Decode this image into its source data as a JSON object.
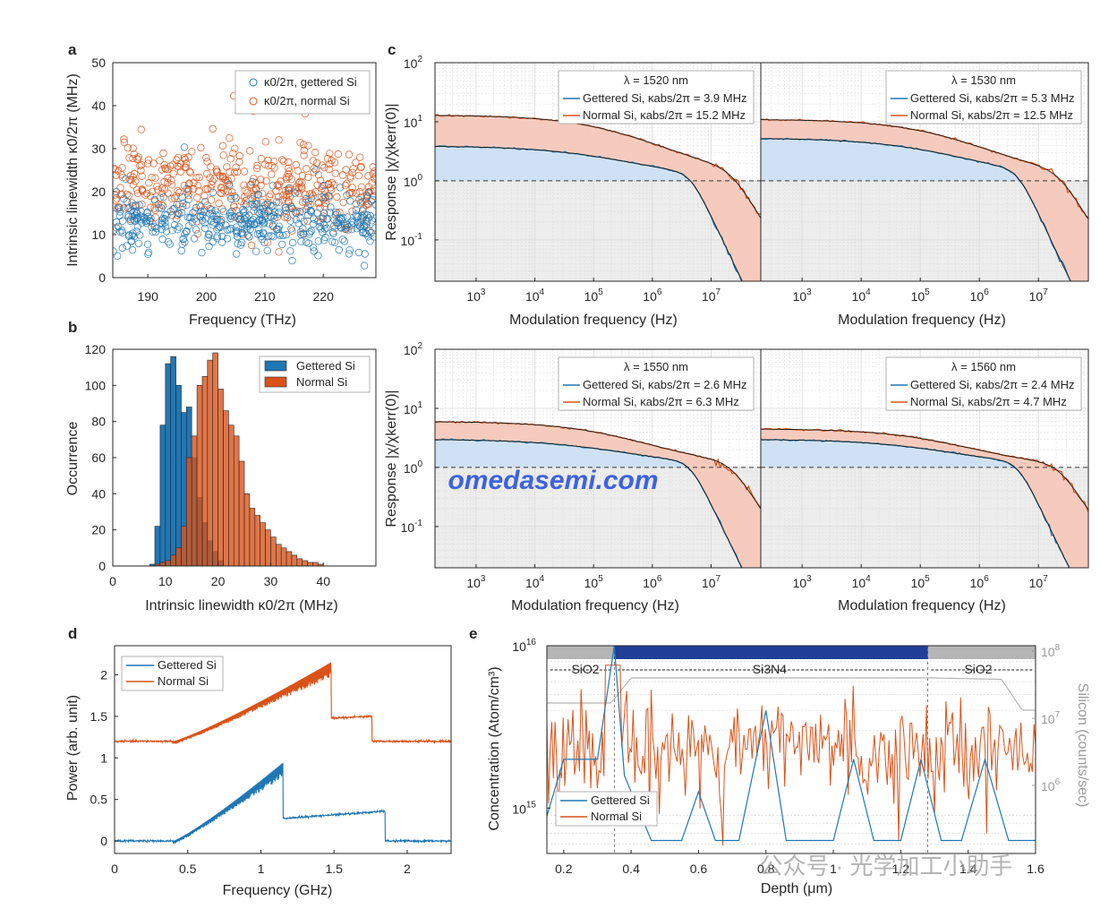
{
  "watermark": "omedasemi.com",
  "footer_watermark": "公众号 · 光学加工小助手",
  "colors": {
    "gettered": "#1f77b4",
    "normal": "#d95319",
    "fill_gettered": "#cfe2f5",
    "fill_normal": "#f6cbbd",
    "fill_gray": "#ededed",
    "sims_blue": "#1f3f99",
    "sims_gray": "#b5b5b5"
  },
  "chart_data": [
    {
      "panel": "a",
      "type": "scatter",
      "xlabel": "Frequency (THz)",
      "ylabel": "Intrinsic linewidth κ0/2π (MHz)",
      "xlim": [
        184,
        229
      ],
      "ylim": [
        0,
        50
      ],
      "xticks": [
        190,
        200,
        210,
        220
      ],
      "yticks": [
        0,
        10,
        20,
        30,
        40,
        50
      ],
      "legend_loc": "top-right",
      "series": [
        {
          "name": "κ0/2π, gettered Si",
          "center": 12.5,
          "spread": 3.5,
          "n": 420
        },
        {
          "name": "κ0/2π, normal Si",
          "center": 21,
          "spread": 4.5,
          "n": 420
        }
      ]
    },
    {
      "panel": "b",
      "type": "bar",
      "xlabel": "Intrinsic linewidth κ0/2π (MHz)",
      "ylabel": "Occurrence",
      "xlim": [
        0,
        50
      ],
      "ylim": [
        0,
        120
      ],
      "xticks": [
        0,
        10,
        20,
        30,
        40
      ],
      "yticks": [
        0,
        20,
        40,
        60,
        80,
        100,
        120
      ],
      "bin_width": 1,
      "legend_loc": "top-right",
      "series": [
        {
          "name": "Gettered Si",
          "bin_start": 7,
          "values": [
            1,
            22,
            78,
            112,
            116,
            100,
            85,
            88,
            60,
            38,
            24,
            14,
            8,
            3
          ]
        },
        {
          "name": "Normal Si",
          "bin_start": 8,
          "values": [
            1,
            2,
            3,
            6,
            10,
            22,
            60,
            72,
            100,
            105,
            114,
            118,
            98,
            86,
            78,
            72,
            58,
            40,
            32,
            28,
            24,
            20,
            16,
            12,
            10,
            8,
            6,
            4,
            3,
            2,
            2,
            1
          ]
        }
      ]
    },
    {
      "panel": "c",
      "type": "line",
      "xlabel": "Modulation frequency (Hz)",
      "ylabel": "Response |χ/χkerr(0)|",
      "x_scale": "log",
      "y_scale": "log",
      "xlim": [
        200,
        70000000
      ],
      "ylim": [
        0.02,
        100
      ],
      "yticks_labeled": [
        "10^-1",
        "10^0",
        "10^1",
        "10^2"
      ],
      "xticks_labeled": [
        "10^3",
        "10^4",
        "10^5",
        "10^6",
        "10^7"
      ],
      "reference_line": 1,
      "subplots": [
        {
          "wavelength_label": "λ = 1520 nm",
          "gettered_label": "Gettered Si, κabs/2π = 3.9 MHz",
          "normal_label": "Normal Si, κabs/2π = 15.2 MHz",
          "g_plateau": 3.9,
          "n_plateau": 13
        },
        {
          "wavelength_label": "λ = 1530 nm",
          "gettered_label": "Gettered Si, κabs/2π = 5.3 MHz",
          "normal_label": "Normal Si, κabs/2π = 12.5 MHz",
          "g_plateau": 5.3,
          "n_plateau": 11
        },
        {
          "wavelength_label": "λ = 1550 nm",
          "gettered_label": "Gettered Si, κabs/2π = 2.6 MHz",
          "normal_label": "Normal Si, κabs/2π = 6.3 MHz",
          "g_plateau": 3.0,
          "n_plateau": 6
        },
        {
          "wavelength_label": "λ = 1560 nm",
          "gettered_label": "Gettered Si, κabs/2π = 2.4 MHz",
          "normal_label": "Normal Si, κabs/2π = 4.7 MHz",
          "g_plateau": 3.0,
          "n_plateau": 4.5
        }
      ]
    },
    {
      "panel": "d",
      "type": "line",
      "xlabel": "Frequency (GHz)",
      "ylabel": "Power (arb. unit)",
      "xlim": [
        0,
        2.3
      ],
      "ylim": [
        -0.15,
        2.35
      ],
      "xticks": [
        0,
        0.5,
        1,
        1.5,
        2
      ],
      "yticks": [
        0,
        0.5,
        1,
        1.5,
        2
      ],
      "legend_loc": "top-left",
      "series": [
        {
          "name": "Gettered Si",
          "baseline": 0,
          "ramp_start": 0.4,
          "peak_x": 1.15,
          "peak_y": 0.97,
          "tail_level": 0.27,
          "tail_end_y": 0.36,
          "tail_end_x": 1.85
        },
        {
          "name": "Normal Si",
          "baseline": 1.2,
          "ramp_start": 0.4,
          "peak_x": 1.48,
          "peak_y": 2.18,
          "tail_level": 1.48,
          "tail_end_y": 1.5,
          "tail_end_x": 1.76
        }
      ]
    },
    {
      "panel": "e",
      "type": "line",
      "xlabel": "Depth (μm)",
      "ylabel": "Concentration (Atom/cm³)",
      "y2label": "Silicon (counts/sec)",
      "xlim": [
        0.15,
        1.6
      ],
      "xticks": [
        0.2,
        0.4,
        0.6,
        0.8,
        1,
        1.2,
        1.4,
        1.6
      ],
      "yticks_labeled": [
        "10^15",
        "10^16"
      ],
      "y2ticks_labeled": [
        "10^6",
        "10^7",
        "10^8"
      ],
      "layers": [
        {
          "label": "SiO2",
          "start": 0.15,
          "end": 0.35
        },
        {
          "label": "Si3N4",
          "start": 0.35,
          "end": 1.28
        },
        {
          "label": "SiO2",
          "start": 1.28,
          "end": 1.6
        }
      ],
      "legend_loc": "bottom-left",
      "series": [
        {
          "name": "Gettered Si"
        },
        {
          "name": "Normal Si"
        }
      ]
    }
  ],
  "panel_letters": [
    "a",
    "b",
    "c",
    "d",
    "e"
  ]
}
